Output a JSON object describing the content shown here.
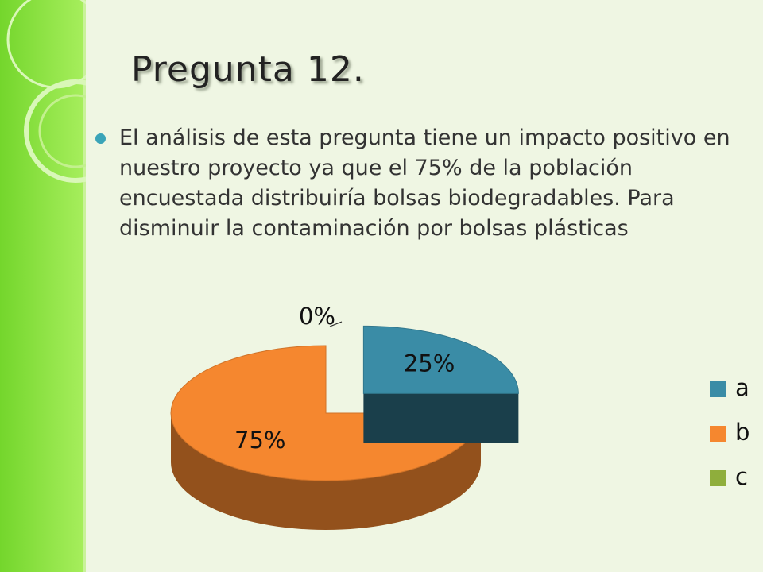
{
  "title": "Pregunta 12.",
  "body": "El análisis de esta pregunta tiene un impacto positivo en nuestro proyecto ya que el 75% de la población encuestada distribuiría bolsas biodegradables. Para disminuir la contaminación por bolsas plásticas",
  "chart_data": {
    "type": "pie",
    "categories": [
      "a",
      "b",
      "c"
    ],
    "values": [
      25,
      75,
      0
    ],
    "value_labels": [
      "25%",
      "75%",
      "0%"
    ],
    "colors": [
      "#3a8ca6",
      "#f5872f",
      "#8fae3c"
    ],
    "legend": "right"
  }
}
